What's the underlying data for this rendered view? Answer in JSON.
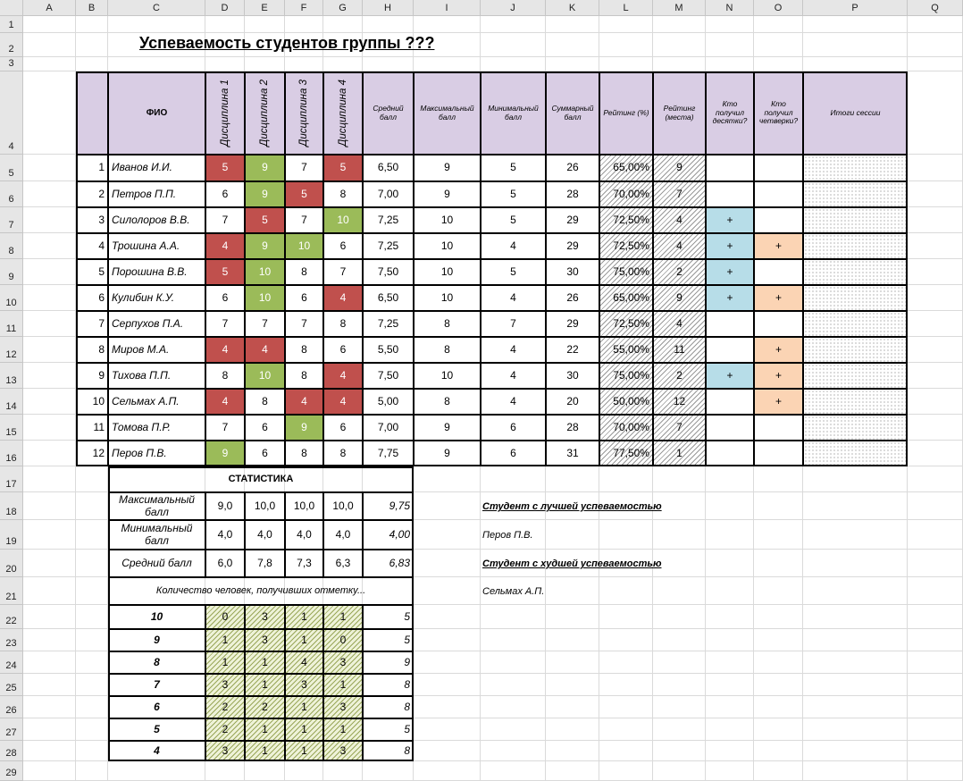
{
  "sheet": {
    "columns": [
      "A",
      "B",
      "C",
      "D",
      "E",
      "F",
      "G",
      "H",
      "I",
      "J",
      "K",
      "L",
      "M",
      "N",
      "O",
      "P",
      "Q"
    ],
    "rows": [
      "1",
      "2",
      "3",
      "4",
      "5",
      "6",
      "7",
      "8",
      "9",
      "10",
      "11",
      "12",
      "13",
      "14",
      "15",
      "16",
      "17",
      "18",
      "19",
      "20",
      "21",
      "22",
      "23",
      "24",
      "25",
      "26",
      "27",
      "28",
      "29"
    ]
  },
  "title": "Успеваемость студентов группы ???",
  "table_headers": {
    "fio": "ФИО",
    "disc1": "Дисциплина 1",
    "disc2": "Дисциплина 2",
    "disc3": "Дисциплина 3",
    "disc4": "Дисциплина 4",
    "avg": "Средний балл",
    "max": "Максимальный балл",
    "min": "Минимальный балл",
    "sum": "Суммарный балл",
    "rating_pct": "Рейтинг (%)",
    "rating_place": "Рейтинг (места)",
    "got10": "Кто получил десятки?",
    "got4": "Кто получил четверки?",
    "result": "Итоги сессии"
  },
  "students": [
    {
      "n": "1",
      "name": "Иванов И.И.",
      "g": [
        "5",
        "9",
        "7",
        "5"
      ],
      "avg": "6,50",
      "max": "9",
      "min": "5",
      "sum": "26",
      "pct": "65,00%",
      "place": "9",
      "t": "",
      "f": ""
    },
    {
      "n": "2",
      "name": "Петров П.П.",
      "g": [
        "6",
        "9",
        "5",
        "8"
      ],
      "avg": "7,00",
      "max": "9",
      "min": "5",
      "sum": "28",
      "pct": "70,00%",
      "place": "7",
      "t": "",
      "f": ""
    },
    {
      "n": "3",
      "name": "Силолоров В.В.",
      "g": [
        "7",
        "5",
        "7",
        "10"
      ],
      "avg": "7,25",
      "max": "10",
      "min": "5",
      "sum": "29",
      "pct": "72,50%",
      "place": "4",
      "t": "+",
      "f": ""
    },
    {
      "n": "4",
      "name": "Трошина А.А.",
      "g": [
        "4",
        "9",
        "10",
        "6"
      ],
      "avg": "7,25",
      "max": "10",
      "min": "4",
      "sum": "29",
      "pct": "72,50%",
      "place": "4",
      "t": "+",
      "f": "+"
    },
    {
      "n": "5",
      "name": "Порошина В.В.",
      "g": [
        "5",
        "10",
        "8",
        "7"
      ],
      "avg": "7,50",
      "max": "10",
      "min": "5",
      "sum": "30",
      "pct": "75,00%",
      "place": "2",
      "t": "+",
      "f": ""
    },
    {
      "n": "6",
      "name": "Кулибин К.У.",
      "g": [
        "6",
        "10",
        "6",
        "4"
      ],
      "avg": "6,50",
      "max": "10",
      "min": "4",
      "sum": "26",
      "pct": "65,00%",
      "place": "9",
      "t": "+",
      "f": "+"
    },
    {
      "n": "7",
      "name": "Серпухов П.А.",
      "g": [
        "7",
        "7",
        "7",
        "8"
      ],
      "avg": "7,25",
      "max": "8",
      "min": "7",
      "sum": "29",
      "pct": "72,50%",
      "place": "4",
      "t": "",
      "f": ""
    },
    {
      "n": "8",
      "name": "Миров М.А.",
      "g": [
        "4",
        "4",
        "8",
        "6"
      ],
      "avg": "5,50",
      "max": "8",
      "min": "4",
      "sum": "22",
      "pct": "55,00%",
      "place": "11",
      "t": "",
      "f": "+"
    },
    {
      "n": "9",
      "name": "Тихова П.П.",
      "g": [
        "8",
        "10",
        "8",
        "4"
      ],
      "avg": "7,50",
      "max": "10",
      "min": "4",
      "sum": "30",
      "pct": "75,00%",
      "place": "2",
      "t": "+",
      "f": "+"
    },
    {
      "n": "10",
      "name": "Сельмах А.П.",
      "g": [
        "4",
        "8",
        "4",
        "4"
      ],
      "avg": "5,00",
      "max": "8",
      "min": "4",
      "sum": "20",
      "pct": "50,00%",
      "place": "12",
      "t": "",
      "f": "+"
    },
    {
      "n": "11",
      "name": "Томова П.Р.",
      "g": [
        "7",
        "6",
        "9",
        "6"
      ],
      "avg": "7,00",
      "max": "9",
      "min": "6",
      "sum": "28",
      "pct": "70,00%",
      "place": "7",
      "t": "",
      "f": ""
    },
    {
      "n": "12",
      "name": "Перов П.В.",
      "g": [
        "9",
        "6",
        "8",
        "8"
      ],
      "avg": "7,75",
      "max": "9",
      "min": "6",
      "sum": "31",
      "pct": "77,50%",
      "place": "1",
      "t": "",
      "f": ""
    }
  ],
  "stats": {
    "title": "СТАТИСТИКА",
    "rows": [
      {
        "label": "Максимальный балл",
        "v": [
          "9,0",
          "10,0",
          "10,0",
          "10,0"
        ],
        "total": "9,75"
      },
      {
        "label": "Минимальный балл",
        "v": [
          "4,0",
          "4,0",
          "4,0",
          "4,0"
        ],
        "total": "4,00"
      },
      {
        "label": "Средний балл",
        "v": [
          "6,0",
          "7,8",
          "7,3",
          "6,3"
        ],
        "total": "6,83"
      }
    ],
    "count_caption": "Количество человек, получивших отметку...",
    "counts": [
      {
        "mark": "10",
        "v": [
          "0",
          "3",
          "1",
          "1"
        ],
        "total": "5"
      },
      {
        "mark": "9",
        "v": [
          "1",
          "3",
          "1",
          "0"
        ],
        "total": "5"
      },
      {
        "mark": "8",
        "v": [
          "1",
          "1",
          "4",
          "3"
        ],
        "total": "9"
      },
      {
        "mark": "7",
        "v": [
          "3",
          "1",
          "3",
          "1"
        ],
        "total": "8"
      },
      {
        "mark": "6",
        "v": [
          "2",
          "2",
          "1",
          "3"
        ],
        "total": "8"
      },
      {
        "mark": "5",
        "v": [
          "2",
          "1",
          "1",
          "1"
        ],
        "total": "5"
      },
      {
        "mark": "4",
        "v": [
          "3",
          "1",
          "1",
          "3"
        ],
        "total": "8"
      }
    ]
  },
  "best": {
    "label": "Студент с лучшей успеваемостью",
    "name": "Перов П.В."
  },
  "worst": {
    "label": "Студент с худшей успеваемостью",
    "name": "Сельмах А.П."
  },
  "colors": {
    "low_grade": "#c0504d",
    "high_grade": "#9bbb59",
    "header_fill": "#d9cde4",
    "tens_fill": "#b7dde8",
    "fours_fill": "#fbd4b4"
  }
}
